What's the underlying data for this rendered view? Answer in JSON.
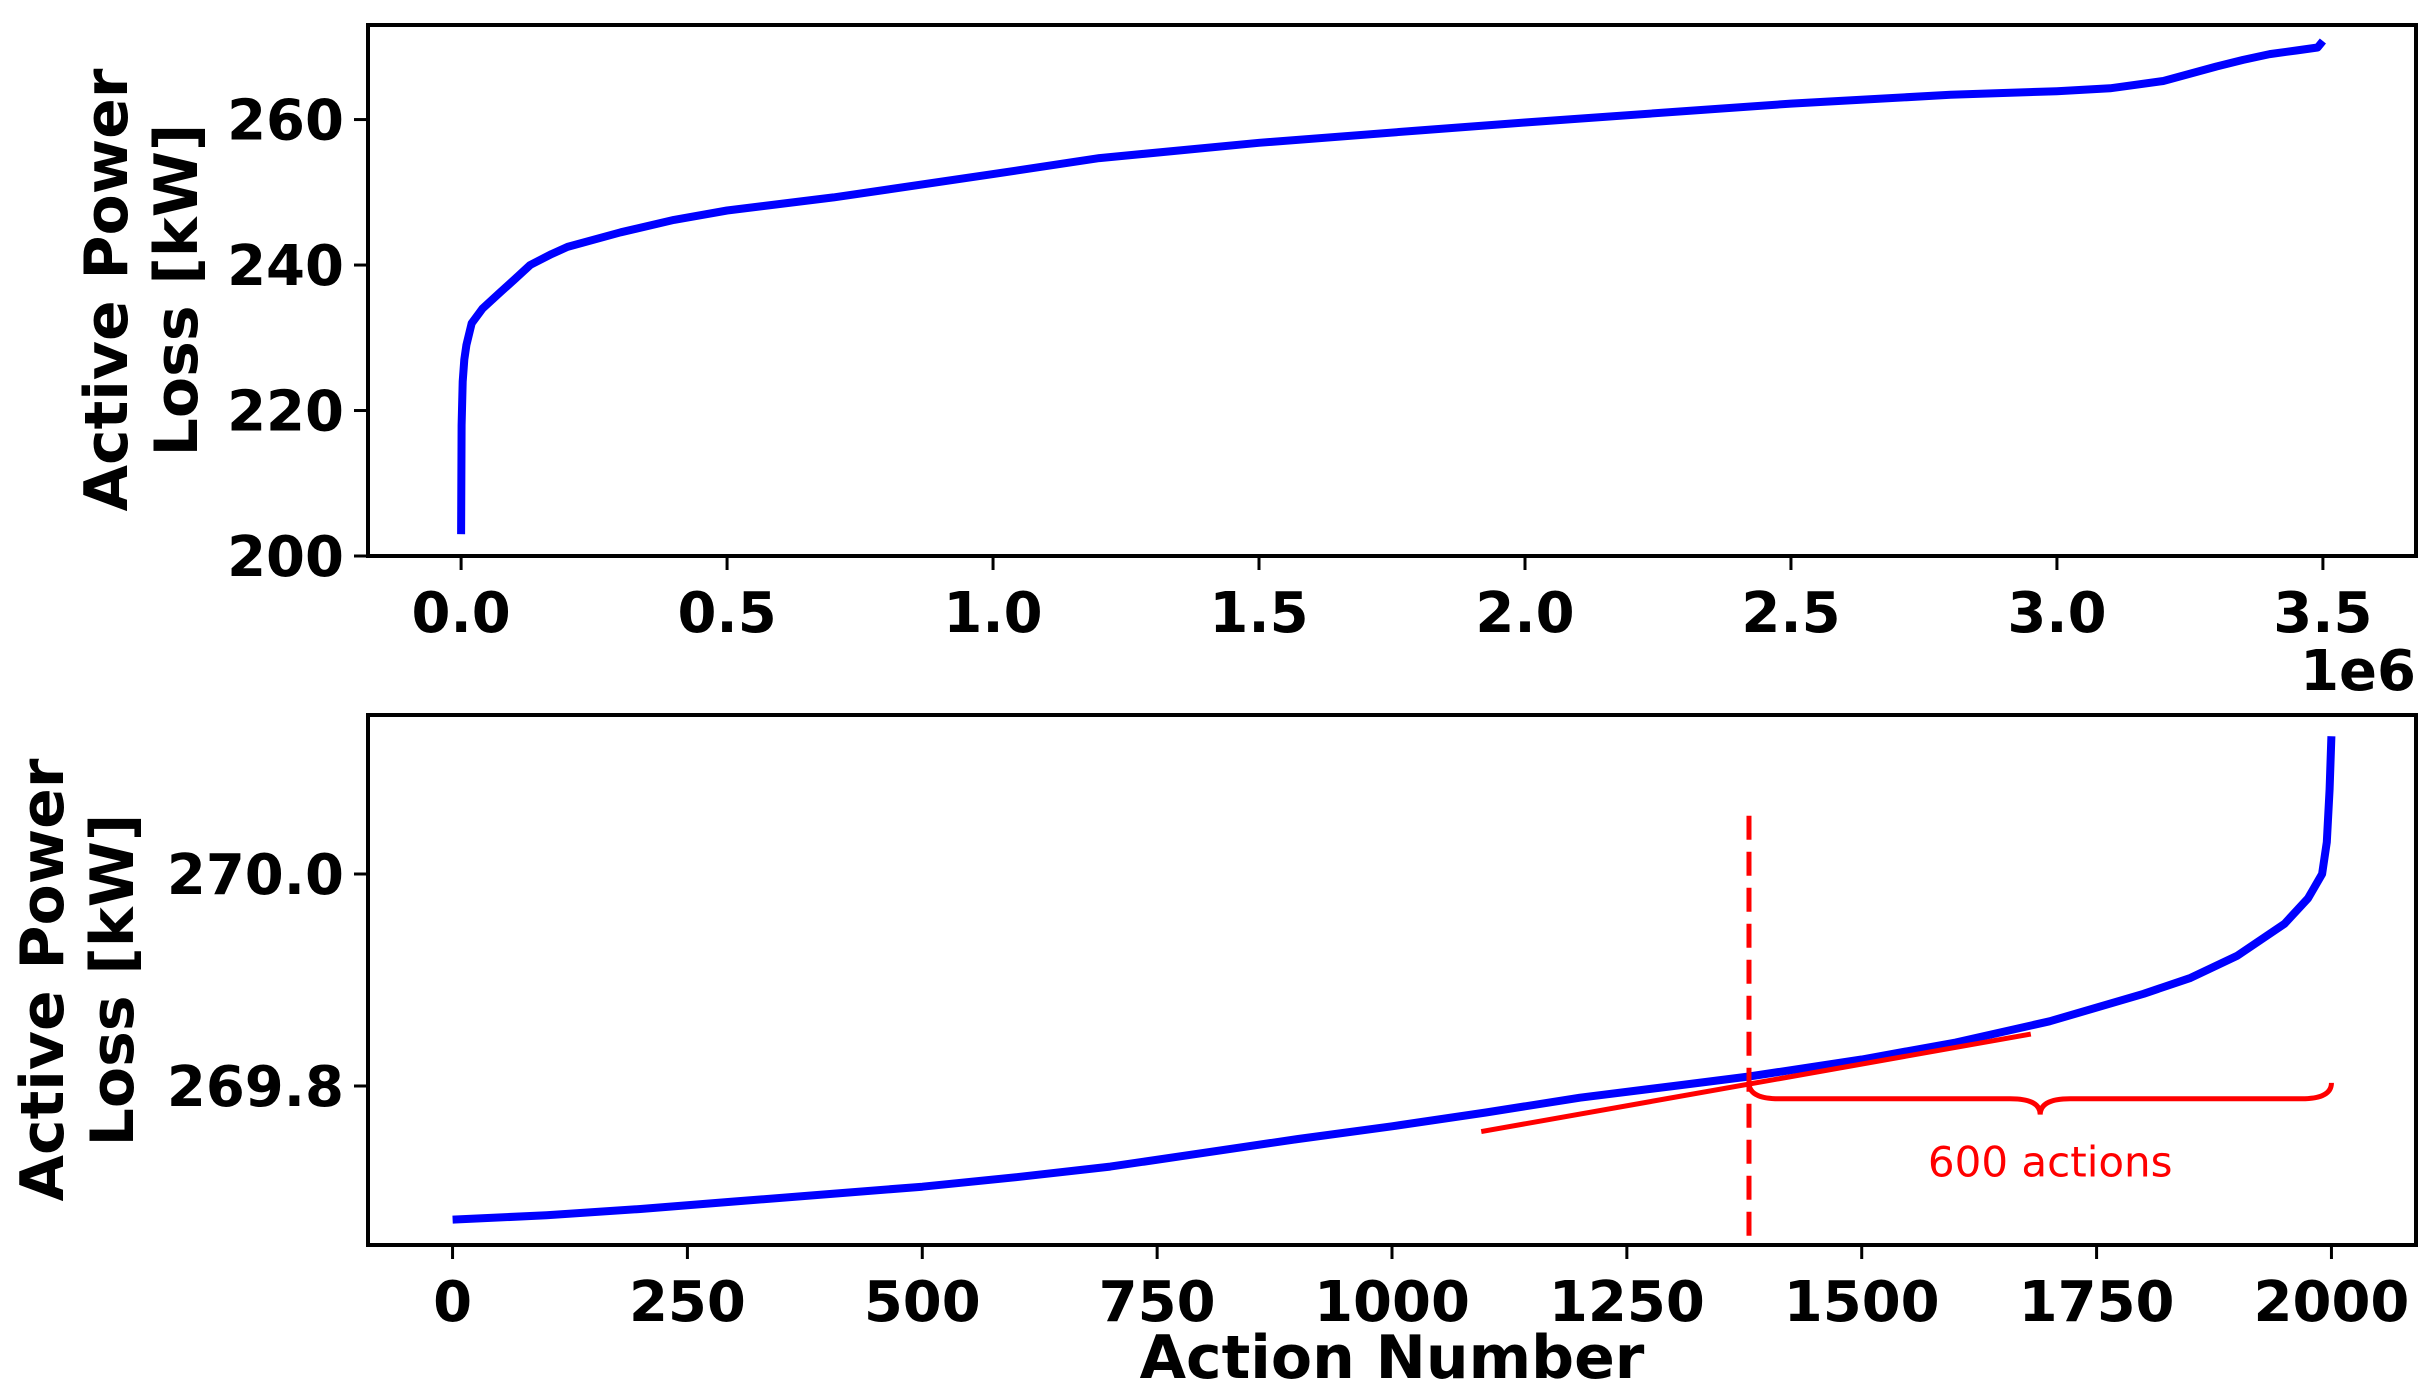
{
  "chart_data": [
    {
      "type": "line",
      "title": "",
      "xlabel": "",
      "ylabel": "Active Power\nLoss [kW]",
      "offset_label": "1e6",
      "xlim": [
        -0.175,
        3.675
      ],
      "ylim": [
        200,
        273
      ],
      "xticks": [
        0.0,
        0.5,
        1.0,
        1.5,
        2.0,
        2.5,
        3.0,
        3.5
      ],
      "xtick_labels": [
        "0.0",
        "0.5",
        "1.0",
        "1.5",
        "2.0",
        "2.5",
        "3.0",
        "3.5"
      ],
      "yticks": [
        200,
        220,
        240,
        260
      ],
      "ytick_labels": [
        "200",
        "220",
        "240",
        "260"
      ],
      "grid": false,
      "series": [
        {
          "color": "#0000ff",
          "x": [
            0.0,
            0.001,
            0.003,
            0.006,
            0.01,
            0.02,
            0.04,
            0.07,
            0.1,
            0.13,
            0.17,
            0.2,
            0.3,
            0.4,
            0.5,
            0.7,
            1.0,
            1.2,
            1.5,
            1.8,
            2.0,
            2.5,
            2.8,
            3.0,
            3.1,
            3.2,
            3.3,
            3.35,
            3.4,
            3.45,
            3.49,
            3.5
          ],
          "y": [
            203,
            218,
            224,
            227,
            229,
            232,
            234,
            236,
            238,
            240,
            241.5,
            242.5,
            244.5,
            246.2,
            247.5,
            249.3,
            252.5,
            254.7,
            256.8,
            258.5,
            259.6,
            262.2,
            263.4,
            263.9,
            264.3,
            265.3,
            267.3,
            268.2,
            269.0,
            269.5,
            269.9,
            270.8
          ]
        }
      ]
    },
    {
      "type": "line",
      "title": "",
      "xlabel": "Action Number",
      "ylabel": "Active Power\nLoss [kW]",
      "xlim": [
        -90,
        2090
      ],
      "ylim": [
        269.65,
        270.15
      ],
      "xticks": [
        0,
        250,
        500,
        750,
        1000,
        1250,
        1500,
        1750,
        2000
      ],
      "xtick_labels": [
        "0",
        "250",
        "500",
        "750",
        "1000",
        "1250",
        "1500",
        "1750",
        "2000"
      ],
      "yticks": [
        269.8,
        270.0
      ],
      "ytick_labels": [
        "269.8",
        "270.0"
      ],
      "grid": false,
      "series": [
        {
          "color": "#0000ff",
          "x": [
            0,
            100,
            200,
            300,
            400,
            500,
            600,
            700,
            800,
            900,
            1000,
            1100,
            1200,
            1300,
            1380,
            1500,
            1600,
            1700,
            1800,
            1850,
            1900,
            1950,
            1975,
            1990,
            1995,
            1998,
            2000
          ],
          "y": [
            269.674,
            269.678,
            269.684,
            269.691,
            269.698,
            269.705,
            269.714,
            269.724,
            269.737,
            269.75,
            269.762,
            269.775,
            269.789,
            269.8,
            269.809,
            269.825,
            269.841,
            269.861,
            269.887,
            269.902,
            269.923,
            269.953,
            269.977,
            270.0,
            270.03,
            270.08,
            270.13
          ]
        }
      ],
      "annotations": {
        "tangent_line": {
          "color": "#ff0000",
          "x": [
            1095,
            1680
          ],
          "y": [
            269.757,
            269.849
          ]
        },
        "vline": {
          "color": "#ff0000",
          "x": 1380,
          "y": [
            269.65,
            270.055
          ],
          "style": "dashed"
        },
        "brace": {
          "color": "#ff0000",
          "x": [
            1380,
            2000
          ],
          "y_top": 269.803,
          "y_bottom": 269.773
        },
        "label": "600 actions"
      }
    }
  ]
}
